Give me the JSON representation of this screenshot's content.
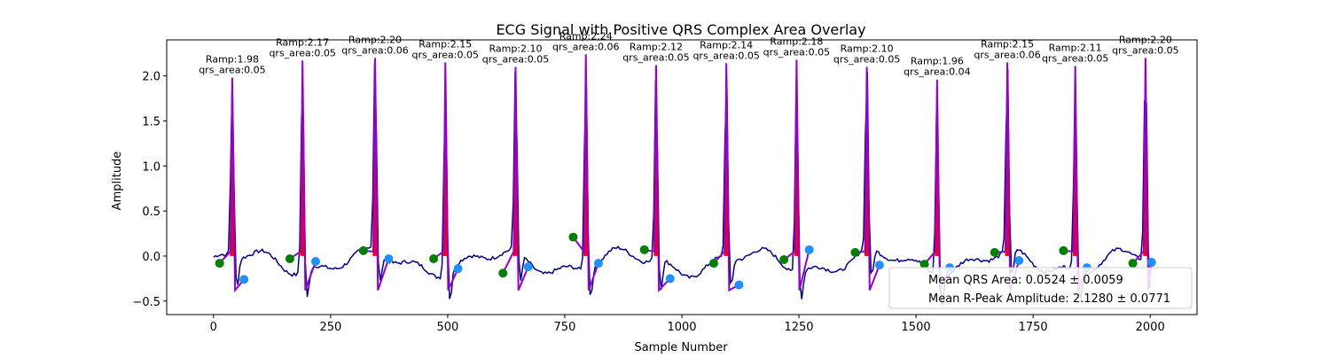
{
  "chart_data": {
    "type": "line",
    "title": "ECG Signal with Positive QRS Complex Area Overlay",
    "xlabel": "Sample Number",
    "ylabel": "Amplitude",
    "xlim": [
      -100,
      2100
    ],
    "ylim": [
      -0.65,
      2.4
    ],
    "x_ticks": [
      0,
      250,
      500,
      750,
      1000,
      1250,
      1500,
      1750,
      2000
    ],
    "x_tick_labels": [
      "0",
      "250",
      "500",
      "750",
      "1000",
      "1250",
      "1500",
      "1750",
      "2000"
    ],
    "y_ticks": [
      -0.5,
      0.0,
      0.5,
      1.0,
      1.5,
      2.0
    ],
    "y_tick_labels": [
      "−0.5",
      "0.0",
      "0.5",
      "1.0",
      "1.5",
      "2.0"
    ],
    "grid": false,
    "beats": [
      {
        "r_x": 40,
        "r_amp": 1.98,
        "qrs_area": 0.05,
        "ramp_label": "Ramp:1.98",
        "area_label": "qrs_area:0.05",
        "onset_x": 13,
        "onset_y": -0.08,
        "offset_x": 65,
        "offset_y": -0.26
      },
      {
        "r_x": 190,
        "r_amp": 2.17,
        "qrs_area": 0.05,
        "ramp_label": "Ramp:2.17",
        "area_label": "qrs_area:0.05",
        "onset_x": 163,
        "onset_y": -0.03,
        "offset_x": 218,
        "offset_y": -0.06
      },
      {
        "r_x": 345,
        "r_amp": 2.2,
        "qrs_area": 0.06,
        "ramp_label": "Ramp:2.20",
        "area_label": "qrs_area:0.06",
        "onset_x": 320,
        "onset_y": 0.06,
        "offset_x": 374,
        "offset_y": -0.03
      },
      {
        "r_x": 495,
        "r_amp": 2.15,
        "qrs_area": 0.05,
        "ramp_label": "Ramp:2.15",
        "area_label": "qrs_area:0.05",
        "onset_x": 470,
        "onset_y": -0.03,
        "offset_x": 522,
        "offset_y": -0.14
      },
      {
        "r_x": 645,
        "r_amp": 2.1,
        "qrs_area": 0.05,
        "ramp_label": "Ramp:2.10",
        "area_label": "qrs_area:0.05",
        "onset_x": 618,
        "onset_y": -0.19,
        "offset_x": 672,
        "offset_y": -0.12
      },
      {
        "r_x": 795,
        "r_amp": 2.24,
        "qrs_area": 0.06,
        "ramp_label": "Ramp:2.24",
        "area_label": "qrs_area:0.06",
        "onset_x": 768,
        "onset_y": 0.21,
        "offset_x": 822,
        "offset_y": -0.08
      },
      {
        "r_x": 945,
        "r_amp": 2.12,
        "qrs_area": 0.05,
        "ramp_label": "Ramp:2.12",
        "area_label": "qrs_area:0.05",
        "onset_x": 920,
        "onset_y": 0.07,
        "offset_x": 975,
        "offset_y": -0.25
      },
      {
        "r_x": 1095,
        "r_amp": 2.14,
        "qrs_area": 0.05,
        "ramp_label": "Ramp:2.14",
        "area_label": "qrs_area:0.05",
        "onset_x": 1068,
        "onset_y": -0.08,
        "offset_x": 1122,
        "offset_y": -0.32
      },
      {
        "r_x": 1245,
        "r_amp": 2.18,
        "qrs_area": 0.05,
        "ramp_label": "Ramp:2.18",
        "area_label": "qrs_area:0.05",
        "onset_x": 1218,
        "onset_y": -0.04,
        "offset_x": 1272,
        "offset_y": 0.07
      },
      {
        "r_x": 1395,
        "r_amp": 2.1,
        "qrs_area": 0.05,
        "ramp_label": "Ramp:2.10",
        "area_label": "qrs_area:0.05",
        "onset_x": 1370,
        "onset_y": 0.04,
        "offset_x": 1422,
        "offset_y": -0.1
      },
      {
        "r_x": 1545,
        "r_amp": 1.96,
        "qrs_area": 0.04,
        "ramp_label": "Ramp:1.96",
        "area_label": "qrs_area:0.04",
        "onset_x": 1518,
        "onset_y": -0.09,
        "offset_x": 1572,
        "offset_y": -0.13
      },
      {
        "r_x": 1695,
        "r_amp": 2.15,
        "qrs_area": 0.06,
        "ramp_label": "Ramp:2.15",
        "area_label": "qrs_area:0.06",
        "onset_x": 1668,
        "onset_y": 0.04,
        "offset_x": 1720,
        "offset_y": -0.05
      },
      {
        "r_x": 1840,
        "r_amp": 2.11,
        "qrs_area": 0.05,
        "ramp_label": "Ramp:2.11",
        "area_label": "qrs_area:0.05",
        "onset_x": 1815,
        "onset_y": 0.06,
        "offset_x": 1865,
        "offset_y": -0.13
      },
      {
        "r_x": 1990,
        "r_amp": 2.2,
        "qrs_area": 0.05,
        "ramp_label": "Ramp:2.20",
        "area_label": "qrs_area:0.05",
        "onset_x": 1963,
        "onset_y": -0.08,
        "offset_x": 2003,
        "offset_y": -0.07
      }
    ],
    "legend": {
      "location": "lower-right",
      "entries": [
        "Mean QRS Area: 0.0524 ± 0.0059",
        "Mean R-Peak Amplitude: 2.1280 ± 0.0771"
      ]
    },
    "colors": {
      "signal": "#00008b",
      "qrs_segment": "#9400d3",
      "area_fill": "#ff0000",
      "onset_marker": "#008000",
      "offset_marker": "#1e90ff"
    }
  }
}
